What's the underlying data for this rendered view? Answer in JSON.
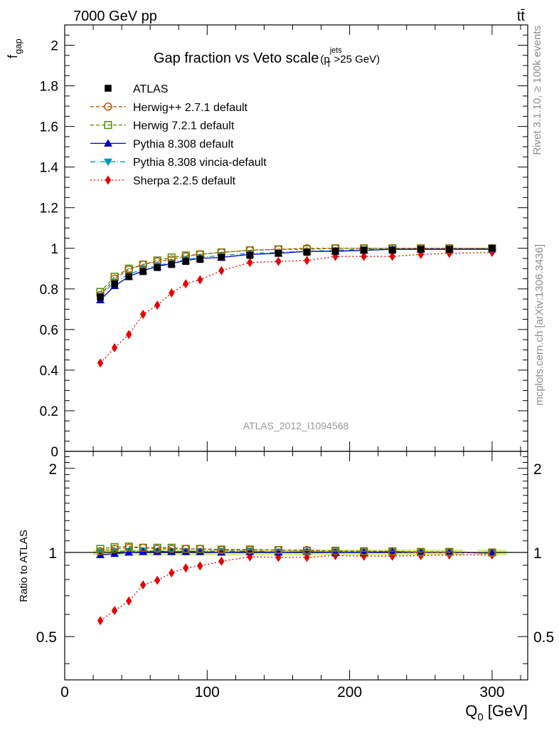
{
  "header": {
    "left": "7000 GeV pp",
    "right": "tt̄"
  },
  "side_labels": {
    "rivet": "Rivet 3.1.10, ≥ 100k events",
    "mcplots": "mcplots.cern.ch [arXiv:1306.3436]"
  },
  "watermark": "ATLAS_2012_I1094568",
  "colors": {
    "atlas": "#000000",
    "herwigpp": "#b35900",
    "herwig7": "#4d8c00",
    "pythia": "#0000cc",
    "vincia": "#0099b3",
    "sherpa": "#e60000",
    "band": "#d8f08c"
  },
  "chart_data": [
    {
      "type": "line",
      "title": "Gap fraction vs Veto scale",
      "title_suffix": {
        "open": "(p",
        "sup": "jets",
        "sub": "T",
        "close": ">25 GeV)"
      },
      "ylabel": "f",
      "ylabel_sub": "gap",
      "xlim": [
        0,
        325
      ],
      "ylim": [
        0,
        2.1
      ],
      "yticks": [
        "0",
        "0.2",
        "0.4",
        "0.6",
        "0.8",
        "1",
        "1.2",
        "1.4",
        "1.6",
        "1.8",
        "2"
      ],
      "x": [
        25,
        35,
        45,
        55,
        65,
        75,
        85,
        95,
        110,
        130,
        150,
        170,
        190,
        210,
        230,
        250,
        270,
        300
      ],
      "legend_position": "top-left",
      "series": [
        {
          "name": "ATLAS",
          "key": "atlas",
          "marker": "square-filled",
          "line": "none",
          "values": [
            0.76,
            0.825,
            0.86,
            0.885,
            0.905,
            0.92,
            0.935,
            0.945,
            0.955,
            0.965,
            0.975,
            0.98,
            0.985,
            0.99,
            0.99,
            0.995,
            0.995,
            1.0
          ]
        },
        {
          "name": "Herwig++ 2.7.1 default",
          "key": "herwigpp",
          "marker": "circle-open",
          "line": "dashed",
          "values": [
            0.77,
            0.85,
            0.895,
            0.92,
            0.935,
            0.945,
            0.96,
            0.97,
            0.98,
            0.99,
            0.995,
            1.0,
            1.0,
            1.0,
            1.0,
            1.0,
            1.0,
            1.0
          ]
        },
        {
          "name": "Herwig 7.2.1 default",
          "key": "herwig7",
          "marker": "square-open",
          "line": "dashed",
          "values": [
            0.785,
            0.86,
            0.9,
            0.92,
            0.94,
            0.955,
            0.965,
            0.97,
            0.98,
            0.99,
            0.995,
            0.995,
            1.0,
            1.0,
            1.0,
            1.0,
            1.0,
            1.0
          ]
        },
        {
          "name": "Pythia 8.308 default",
          "key": "pythia",
          "marker": "triangle-up",
          "line": "solid",
          "values": [
            0.745,
            0.815,
            0.86,
            0.89,
            0.91,
            0.925,
            0.94,
            0.95,
            0.955,
            0.97,
            0.975,
            0.985,
            0.985,
            0.99,
            0.995,
            0.995,
            0.995,
            0.995
          ]
        },
        {
          "name": "Pythia 8.308 vincia-default",
          "key": "vincia",
          "marker": "triangle-down",
          "line": "dashdot",
          "values": [
            0.765,
            0.835,
            0.87,
            0.9,
            0.915,
            0.93,
            0.945,
            0.955,
            0.965,
            0.975,
            0.98,
            0.985,
            0.99,
            0.995,
            0.995,
            0.995,
            0.995,
            1.0
          ]
        },
        {
          "name": "Sherpa 2.2.5 default",
          "key": "sherpa",
          "marker": "diamond",
          "line": "dotted",
          "values": [
            0.435,
            0.51,
            0.575,
            0.675,
            0.72,
            0.78,
            0.825,
            0.845,
            0.89,
            0.93,
            0.935,
            0.94,
            0.96,
            0.96,
            0.96,
            0.97,
            0.975,
            0.98
          ]
        }
      ]
    },
    {
      "type": "line",
      "ylabel": "Ratio to ATLAS",
      "xlabel": "Q",
      "xlabel_sub": "0",
      "xlabel_unit": "[GeV]",
      "xlim": [
        0,
        325
      ],
      "xticks": [
        "0",
        "100",
        "200",
        "300"
      ],
      "ylim": [
        0.35,
        2.3
      ],
      "yticks": [
        "0.5",
        "1",
        "2"
      ],
      "series": [
        {
          "key": "atlas",
          "values": [
            1,
            1,
            1,
            1,
            1,
            1,
            1,
            1,
            1,
            1,
            1,
            1,
            1,
            1,
            1,
            1,
            1,
            1
          ]
        },
        {
          "key": "herwigpp",
          "values": [
            1.01,
            1.03,
            1.04,
            1.04,
            1.03,
            1.03,
            1.03,
            1.03,
            1.02,
            1.02,
            1.02,
            1.02,
            1.01,
            1.01,
            1.01,
            1.0,
            1.0,
            1.0
          ]
        },
        {
          "key": "herwig7",
          "values": [
            1.03,
            1.045,
            1.05,
            1.04,
            1.04,
            1.04,
            1.03,
            1.03,
            1.025,
            1.025,
            1.02,
            1.015,
            1.015,
            1.01,
            1.01,
            1.005,
            1.005,
            1.0
          ]
        },
        {
          "key": "pythia",
          "values": [
            0.98,
            0.99,
            1.0,
            1.005,
            1.005,
            1.005,
            1.005,
            1.005,
            1.0,
            1.005,
            1.0,
            1.005,
            1.0,
            1.0,
            1.005,
            1.0,
            1.0,
            0.995
          ]
        },
        {
          "key": "vincia",
          "values": [
            1.005,
            1.01,
            1.01,
            1.015,
            1.01,
            1.01,
            1.01,
            1.01,
            1.01,
            1.01,
            1.005,
            1.005,
            1.005,
            1.005,
            1.005,
            1.0,
            1.0,
            1.0
          ]
        },
        {
          "key": "sherpa",
          "values": [
            0.57,
            0.62,
            0.67,
            0.765,
            0.795,
            0.845,
            0.88,
            0.895,
            0.93,
            0.965,
            0.96,
            0.96,
            0.975,
            0.97,
            0.97,
            0.975,
            0.98,
            0.98
          ]
        }
      ]
    }
  ]
}
